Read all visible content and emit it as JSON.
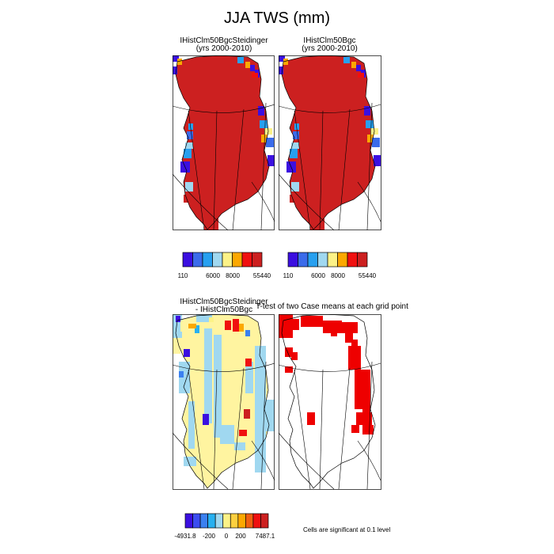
{
  "title": "JJA TWS (mm)",
  "chart_data": [
    {
      "type": "heatmap",
      "title": "IHistClm50BgcSteidinger",
      "subtitle": "(yrs 2000-2010)",
      "colorbar_ticks": [
        "110",
        "6000",
        "8000",
        "55440"
      ],
      "palette": [
        "#3b0fe0",
        "#3b6bea",
        "#27a0f0",
        "#a0d8f0",
        "#fcf287",
        "#fca800",
        "#f01010",
        "#cc2020"
      ],
      "dominant_value_range": "above 8000"
    },
    {
      "type": "heatmap",
      "title": "IHistClm50Bgc",
      "subtitle": "(yrs 2000-2010)",
      "colorbar_ticks": [
        "110",
        "6000",
        "8000",
        "55440"
      ],
      "palette": [
        "#3b0fe0",
        "#3b6bea",
        "#27a0f0",
        "#a0d8f0",
        "#fcf287",
        "#fca800",
        "#f01010",
        "#cc2020"
      ],
      "dominant_value_range": "above 8000"
    },
    {
      "type": "heatmap",
      "title": "IHistClm50BgcSteidinger",
      "subtitle": "- IHistClm50Bgc",
      "colorbar_ticks": [
        "-4931.8",
        "-200",
        "0",
        "200",
        "7487.1"
      ],
      "palette": [
        "#3b0fe0",
        "#3b4df0",
        "#3b80f0",
        "#27b0f0",
        "#a0d8f0",
        "#fcf287",
        "#fcd040",
        "#fca800",
        "#f06010",
        "#f01010",
        "#cc2020"
      ]
    },
    {
      "type": "heatmap",
      "title": "T-test of two Case means at each grid point",
      "note": "Cells are significant at 0.1 level",
      "significant_color": "#ee0000"
    }
  ]
}
